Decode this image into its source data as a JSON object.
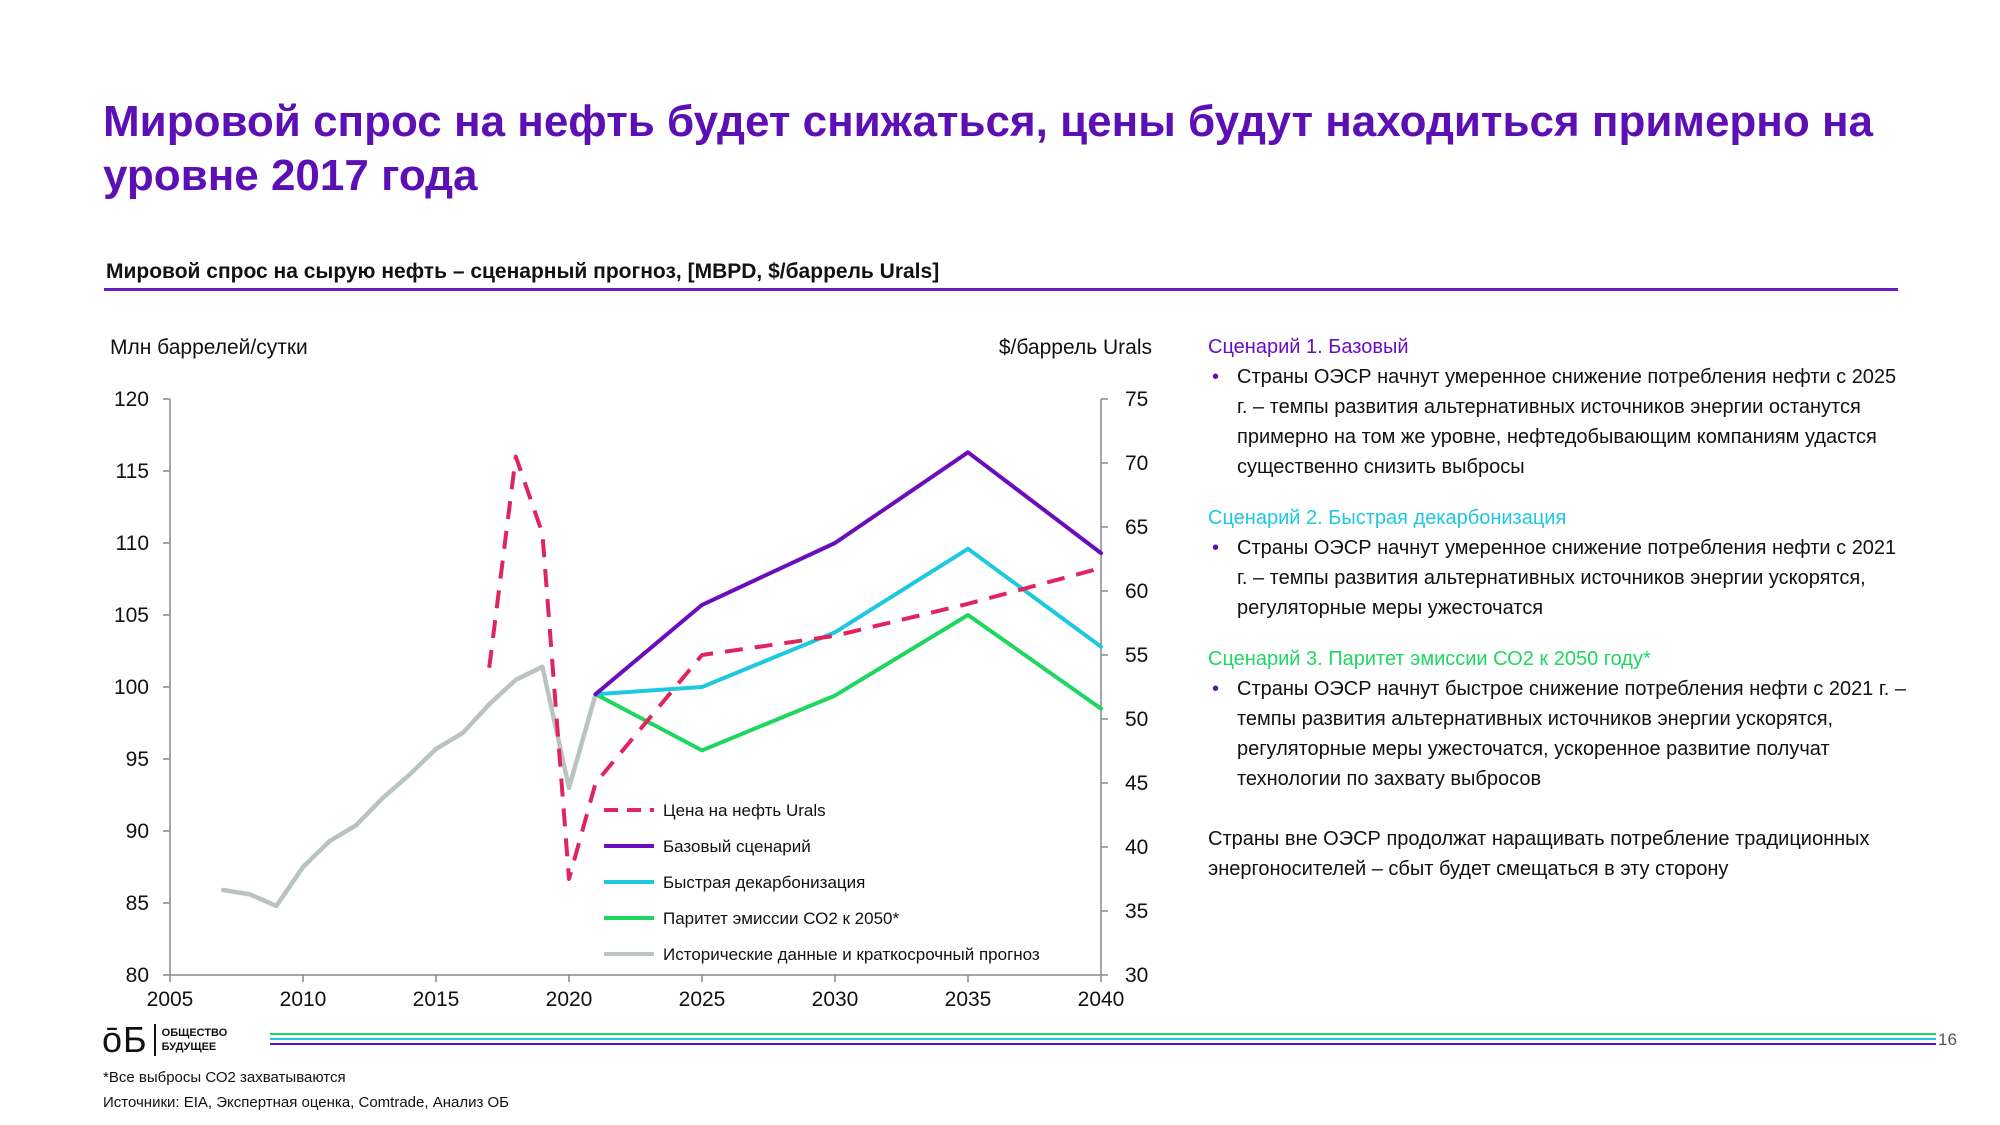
{
  "page": {
    "title": "Мировой спрос на нефть будет снижаться, цены будут находиться примерно на уровне 2017 года",
    "subtitle": "Мировой спрос на сырую нефть – сценарный прогноз, [MBPD, $/баррель Urals]",
    "page_number": "16"
  },
  "colors": {
    "title": "#5b0fb5",
    "price": "#e0245e",
    "base": "#6a0dbd",
    "fast": "#1ec8e0",
    "parity": "#1ed760",
    "historical": "#b9c4c0"
  },
  "chart_data": {
    "type": "line",
    "left_axis_label": "Млн баррелей/сутки",
    "right_axis_label": "$/баррель Urals",
    "x_ticks": [
      2005,
      2010,
      2015,
      2020,
      2025,
      2030,
      2035,
      2040
    ],
    "xlim": [
      2005,
      2040
    ],
    "ylim_left": [
      80,
      120
    ],
    "yticks_left": [
      80,
      85,
      90,
      95,
      100,
      105,
      110,
      115,
      120
    ],
    "ylim_right": [
      30,
      75
    ],
    "yticks_right": [
      30,
      35,
      40,
      45,
      50,
      55,
      60,
      65,
      70,
      75
    ],
    "series": [
      {
        "key": "price",
        "name": "Цена на нефть Urals",
        "axis": "right",
        "dashed": true,
        "color": "#e0245e",
        "x": [
          2017,
          2018,
          2019,
          2020,
          2021,
          2025,
          2030,
          2035,
          2040
        ],
        "y": [
          54,
          70.5,
          64.5,
          37.5,
          45,
          55,
          56.5,
          59,
          61.8
        ]
      },
      {
        "key": "base",
        "name": "Базовый сценарий",
        "axis": "left",
        "dashed": false,
        "color": "#6a0dbd",
        "x": [
          2021,
          2025,
          2030,
          2035,
          2040
        ],
        "y": [
          99.5,
          105.7,
          110,
          116.3,
          109.3
        ]
      },
      {
        "key": "fast",
        "name": "Быстрая декарбонизация",
        "axis": "left",
        "dashed": false,
        "color": "#1ec8e0",
        "x": [
          2021,
          2025,
          2030,
          2035,
          2040
        ],
        "y": [
          99.5,
          100,
          103.8,
          109.6,
          102.8
        ]
      },
      {
        "key": "parity",
        "name": "Паритет эмиссии СО2 к 2050*",
        "axis": "left",
        "dashed": false,
        "color": "#1ed760",
        "x": [
          2021,
          2025,
          2030,
          2035,
          2040
        ],
        "y": [
          99.5,
          95.6,
          99.4,
          105,
          98.5
        ]
      },
      {
        "key": "historical",
        "name": "Исторические данные и краткосрочный прогноз",
        "axis": "left",
        "dashed": false,
        "color": "#b9c4c0",
        "x": [
          2007,
          2008,
          2009,
          2010,
          2011,
          2012,
          2013,
          2014,
          2015,
          2016,
          2017,
          2018,
          2019,
          2020,
          2021
        ],
        "y": [
          85.9,
          85.6,
          84.8,
          87.5,
          89.3,
          90.4,
          92.3,
          93.9,
          95.7,
          96.8,
          98.8,
          100.5,
          101.4,
          93,
          99.5
        ]
      }
    ],
    "legend_order": [
      "price",
      "base",
      "fast",
      "parity",
      "historical"
    ]
  },
  "notes": {
    "scenarios": [
      {
        "title": "Сценарий 1. Базовый",
        "color": "#6a0dbd",
        "bullet": "Страны ОЭСР начнут умеренное снижение потребления нефти с 2025 г. – темпы развития альтернативных источников энергии останутся примерно на том же уровне, нефтедобывающим компаниям удастся существенно снизить выбросы"
      },
      {
        "title": "Сценарий 2. Быстрая декарбонизация",
        "color": "#1ec8e0",
        "bullet": "Страны ОЭСР начнут умеренное снижение потребления нефти с 2021 г. – темпы развития альтернативных источников энергии ускорятся, регуляторные меры ужесточатся"
      },
      {
        "title": "Сценарий 3. Паритет эмиссии СО2 к 2050 году*",
        "color": "#1ed760",
        "bullet": "Страны ОЭСР начнут быстрое снижение потребления нефти с 2021 г. – темпы развития альтернативных источников энергии ускорятся, регуляторные меры ужесточатся, ускоренное развитие получат технологии по захвату выбросов"
      }
    ],
    "closing": "Страны вне ОЭСР продолжат наращивать потребление традиционных энергоносителей – сбыт будет смещаться в эту сторону"
  },
  "footer": {
    "logo_mark": "ōБ",
    "logo_line1": "ОБЩЕСТВО",
    "logo_line2": "БУДУЩЕЕ",
    "footnote": "*Все выбросы СО2 захватываются",
    "sources": "Источники: EIA, Экспертная оценка, Comtrade, Анализ ОБ"
  }
}
